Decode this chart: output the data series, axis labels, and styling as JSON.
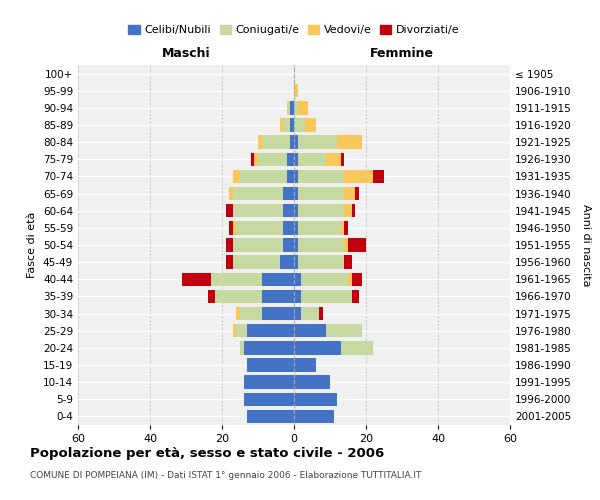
{
  "age_groups": [
    "0-4",
    "5-9",
    "10-14",
    "15-19",
    "20-24",
    "25-29",
    "30-34",
    "35-39",
    "40-44",
    "45-49",
    "50-54",
    "55-59",
    "60-64",
    "65-69",
    "70-74",
    "75-79",
    "80-84",
    "85-89",
    "90-94",
    "95-99",
    "100+"
  ],
  "birth_years": [
    "2001-2005",
    "1996-2000",
    "1991-1995",
    "1986-1990",
    "1981-1985",
    "1976-1980",
    "1971-1975",
    "1966-1970",
    "1961-1965",
    "1956-1960",
    "1951-1955",
    "1946-1950",
    "1941-1945",
    "1936-1940",
    "1931-1935",
    "1926-1930",
    "1921-1925",
    "1916-1920",
    "1911-1915",
    "1906-1910",
    "≤ 1905"
  ],
  "male": {
    "celibi": [
      13,
      14,
      14,
      13,
      14,
      13,
      9,
      9,
      9,
      4,
      3,
      3,
      3,
      3,
      2,
      2,
      1,
      1,
      1,
      0,
      0
    ],
    "coniugati": [
      0,
      0,
      0,
      0,
      1,
      3,
      6,
      13,
      14,
      13,
      14,
      13,
      14,
      14,
      13,
      8,
      8,
      2,
      1,
      0,
      0
    ],
    "vedovi": [
      0,
      0,
      0,
      0,
      0,
      1,
      1,
      0,
      0,
      0,
      0,
      1,
      0,
      1,
      2,
      1,
      1,
      1,
      0,
      0,
      0
    ],
    "divorziati": [
      0,
      0,
      0,
      0,
      0,
      0,
      0,
      2,
      8,
      2,
      2,
      1,
      2,
      0,
      0,
      1,
      0,
      0,
      0,
      0,
      0
    ]
  },
  "female": {
    "nubili": [
      11,
      12,
      10,
      6,
      13,
      9,
      2,
      2,
      2,
      1,
      1,
      1,
      1,
      1,
      1,
      1,
      1,
      0,
      0,
      0,
      0
    ],
    "coniugate": [
      0,
      0,
      0,
      0,
      9,
      10,
      5,
      14,
      13,
      13,
      13,
      12,
      13,
      13,
      13,
      8,
      11,
      3,
      1,
      0,
      0
    ],
    "vedove": [
      0,
      0,
      0,
      0,
      0,
      0,
      0,
      0,
      1,
      0,
      1,
      1,
      2,
      3,
      8,
      4,
      7,
      3,
      3,
      1,
      0
    ],
    "divorziate": [
      0,
      0,
      0,
      0,
      0,
      0,
      1,
      2,
      3,
      2,
      5,
      1,
      1,
      1,
      3,
      1,
      0,
      0,
      0,
      0,
      0
    ]
  },
  "colors": {
    "celibi": "#4472C4",
    "coniugati": "#C5D9A0",
    "vedovi": "#FAC85A",
    "divorziati": "#C0000C"
  },
  "title": "Popolazione per età, sesso e stato civile - 2006",
  "subtitle": "COMUNE DI POMPEIANA (IM) - Dati ISTAT 1° gennaio 2006 - Elaborazione TUTTITALIA.IT",
  "label_maschi": "Maschi",
  "label_femmine": "Femmine",
  "ylabel_left": "Fasce di età",
  "ylabel_right": "Anni di nascita",
  "xlim": 60,
  "legend_labels": [
    "Celibi/Nubili",
    "Coniugati/e",
    "Vedovi/e",
    "Divorziati/e"
  ],
  "bg_color": "#f0f0f0"
}
